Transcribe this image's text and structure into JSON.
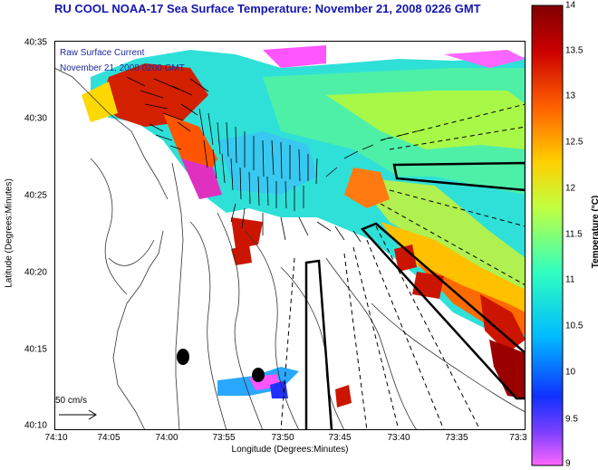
{
  "title": "RU COOL  NOAA-17  Sea Surface Temperature:  November 21, 2008 0226 GMT",
  "legend": {
    "raw_label": "Raw Surface Current",
    "date_label": "November 21, 2008 0200 GMT",
    "scale_label": "50 cm/s"
  },
  "axes": {
    "ylabel": "Latitude (Degrees:Minutes)",
    "xlabel": "Longitude (Degrees:Minutes)",
    "yticks": [
      "40:35",
      "40:30",
      "40:25",
      "40:20",
      "40:15",
      "40:10"
    ],
    "xticks": [
      "74:10",
      "74:05",
      "74:00",
      "73:55",
      "73:50",
      "73:45",
      "73:40",
      "73:35",
      "73:3"
    ]
  },
  "colorbar": {
    "label": "Temperature (°C)",
    "ticks": [
      "14",
      "13.5",
      "13",
      "12.5",
      "12",
      "11.5",
      "11",
      "10.5",
      "10",
      "9.5",
      "9"
    ],
    "min": 9,
    "max": 14,
    "colors": [
      "#ff66ff",
      "#8040ff",
      "#1030ff",
      "#00bbff",
      "#30ffc0",
      "#c0ff40",
      "#ffd000",
      "#ff6000",
      "#cc0000",
      "#800000"
    ]
  }
}
